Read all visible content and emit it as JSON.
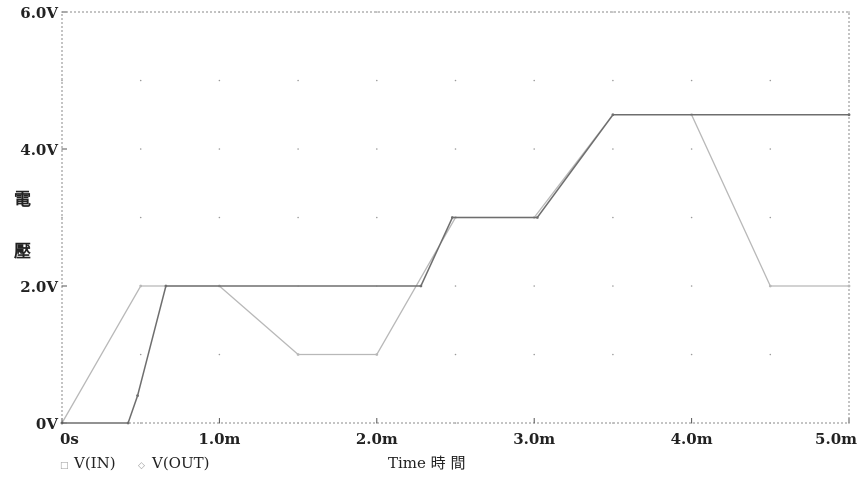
{
  "chart_data": {
    "type": "line",
    "xlabel": "Time 時 間",
    "ylabel_chars": [
      "電",
      "壓"
    ],
    "x_ticks": [
      {
        "value": 0,
        "label": "0s"
      },
      {
        "value": 1.0,
        "label": "1.0m"
      },
      {
        "value": 2.0,
        "label": "2.0m"
      },
      {
        "value": 3.0,
        "label": "3.0m"
      },
      {
        "value": 4.0,
        "label": "4.0m"
      },
      {
        "value": 5.0,
        "label": "5.0m"
      }
    ],
    "y_ticks": [
      {
        "value": 0,
        "label": "0V"
      },
      {
        "value": 2.0,
        "label": "2.0V"
      },
      {
        "value": 4.0,
        "label": "4.0V"
      },
      {
        "value": 6.0,
        "label": "6.0V"
      }
    ],
    "xlim": [
      0,
      5.0
    ],
    "ylim": [
      0,
      6.0
    ],
    "grid": true,
    "legend_position": "bottom-left",
    "series": [
      {
        "name": "V(IN)",
        "marker": "□",
        "color": "#b8b8b8",
        "x": [
          0,
          0.5,
          1.0,
          1.5,
          2.0,
          2.5,
          3.0,
          3.5,
          4.0,
          4.5,
          5.0
        ],
        "y": [
          0,
          2.0,
          2.0,
          1.0,
          1.0,
          3.0,
          3.0,
          4.5,
          4.5,
          2.0,
          2.0
        ]
      },
      {
        "name": "V(OUT)",
        "marker": "◇",
        "color": "#6e6e6e",
        "x": [
          0,
          0.42,
          0.48,
          0.66,
          2.28,
          2.48,
          3.02,
          3.5,
          5.0
        ],
        "y": [
          0,
          0,
          0.4,
          2.0,
          2.0,
          3.0,
          3.0,
          4.5,
          4.5
        ]
      }
    ]
  }
}
